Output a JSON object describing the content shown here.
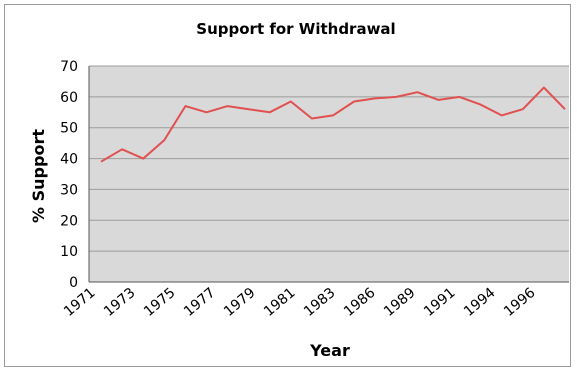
{
  "chart_data": {
    "type": "line",
    "title": "Support for Withdrawal",
    "xlabel": "Year",
    "ylabel": "% Support",
    "ylim": [
      0,
      70
    ],
    "yticks": [
      0,
      10,
      20,
      30,
      40,
      50,
      60,
      70
    ],
    "xtick_labels": [
      "1971",
      "1973",
      "1975",
      "1977",
      "1979",
      "1981",
      "1983",
      "1986",
      "1989",
      "1991",
      "1994",
      "1996"
    ],
    "grid": true,
    "plot_background": "#d9d9d9",
    "line_color": "#e0504f",
    "series": [
      {
        "values": [
          39,
          43,
          40,
          46,
          57,
          55,
          57,
          56,
          55,
          58.5,
          53,
          54,
          58.5,
          59.5,
          60,
          61.5,
          59,
          60,
          57.5,
          54,
          56,
          63,
          56
        ]
      }
    ]
  }
}
